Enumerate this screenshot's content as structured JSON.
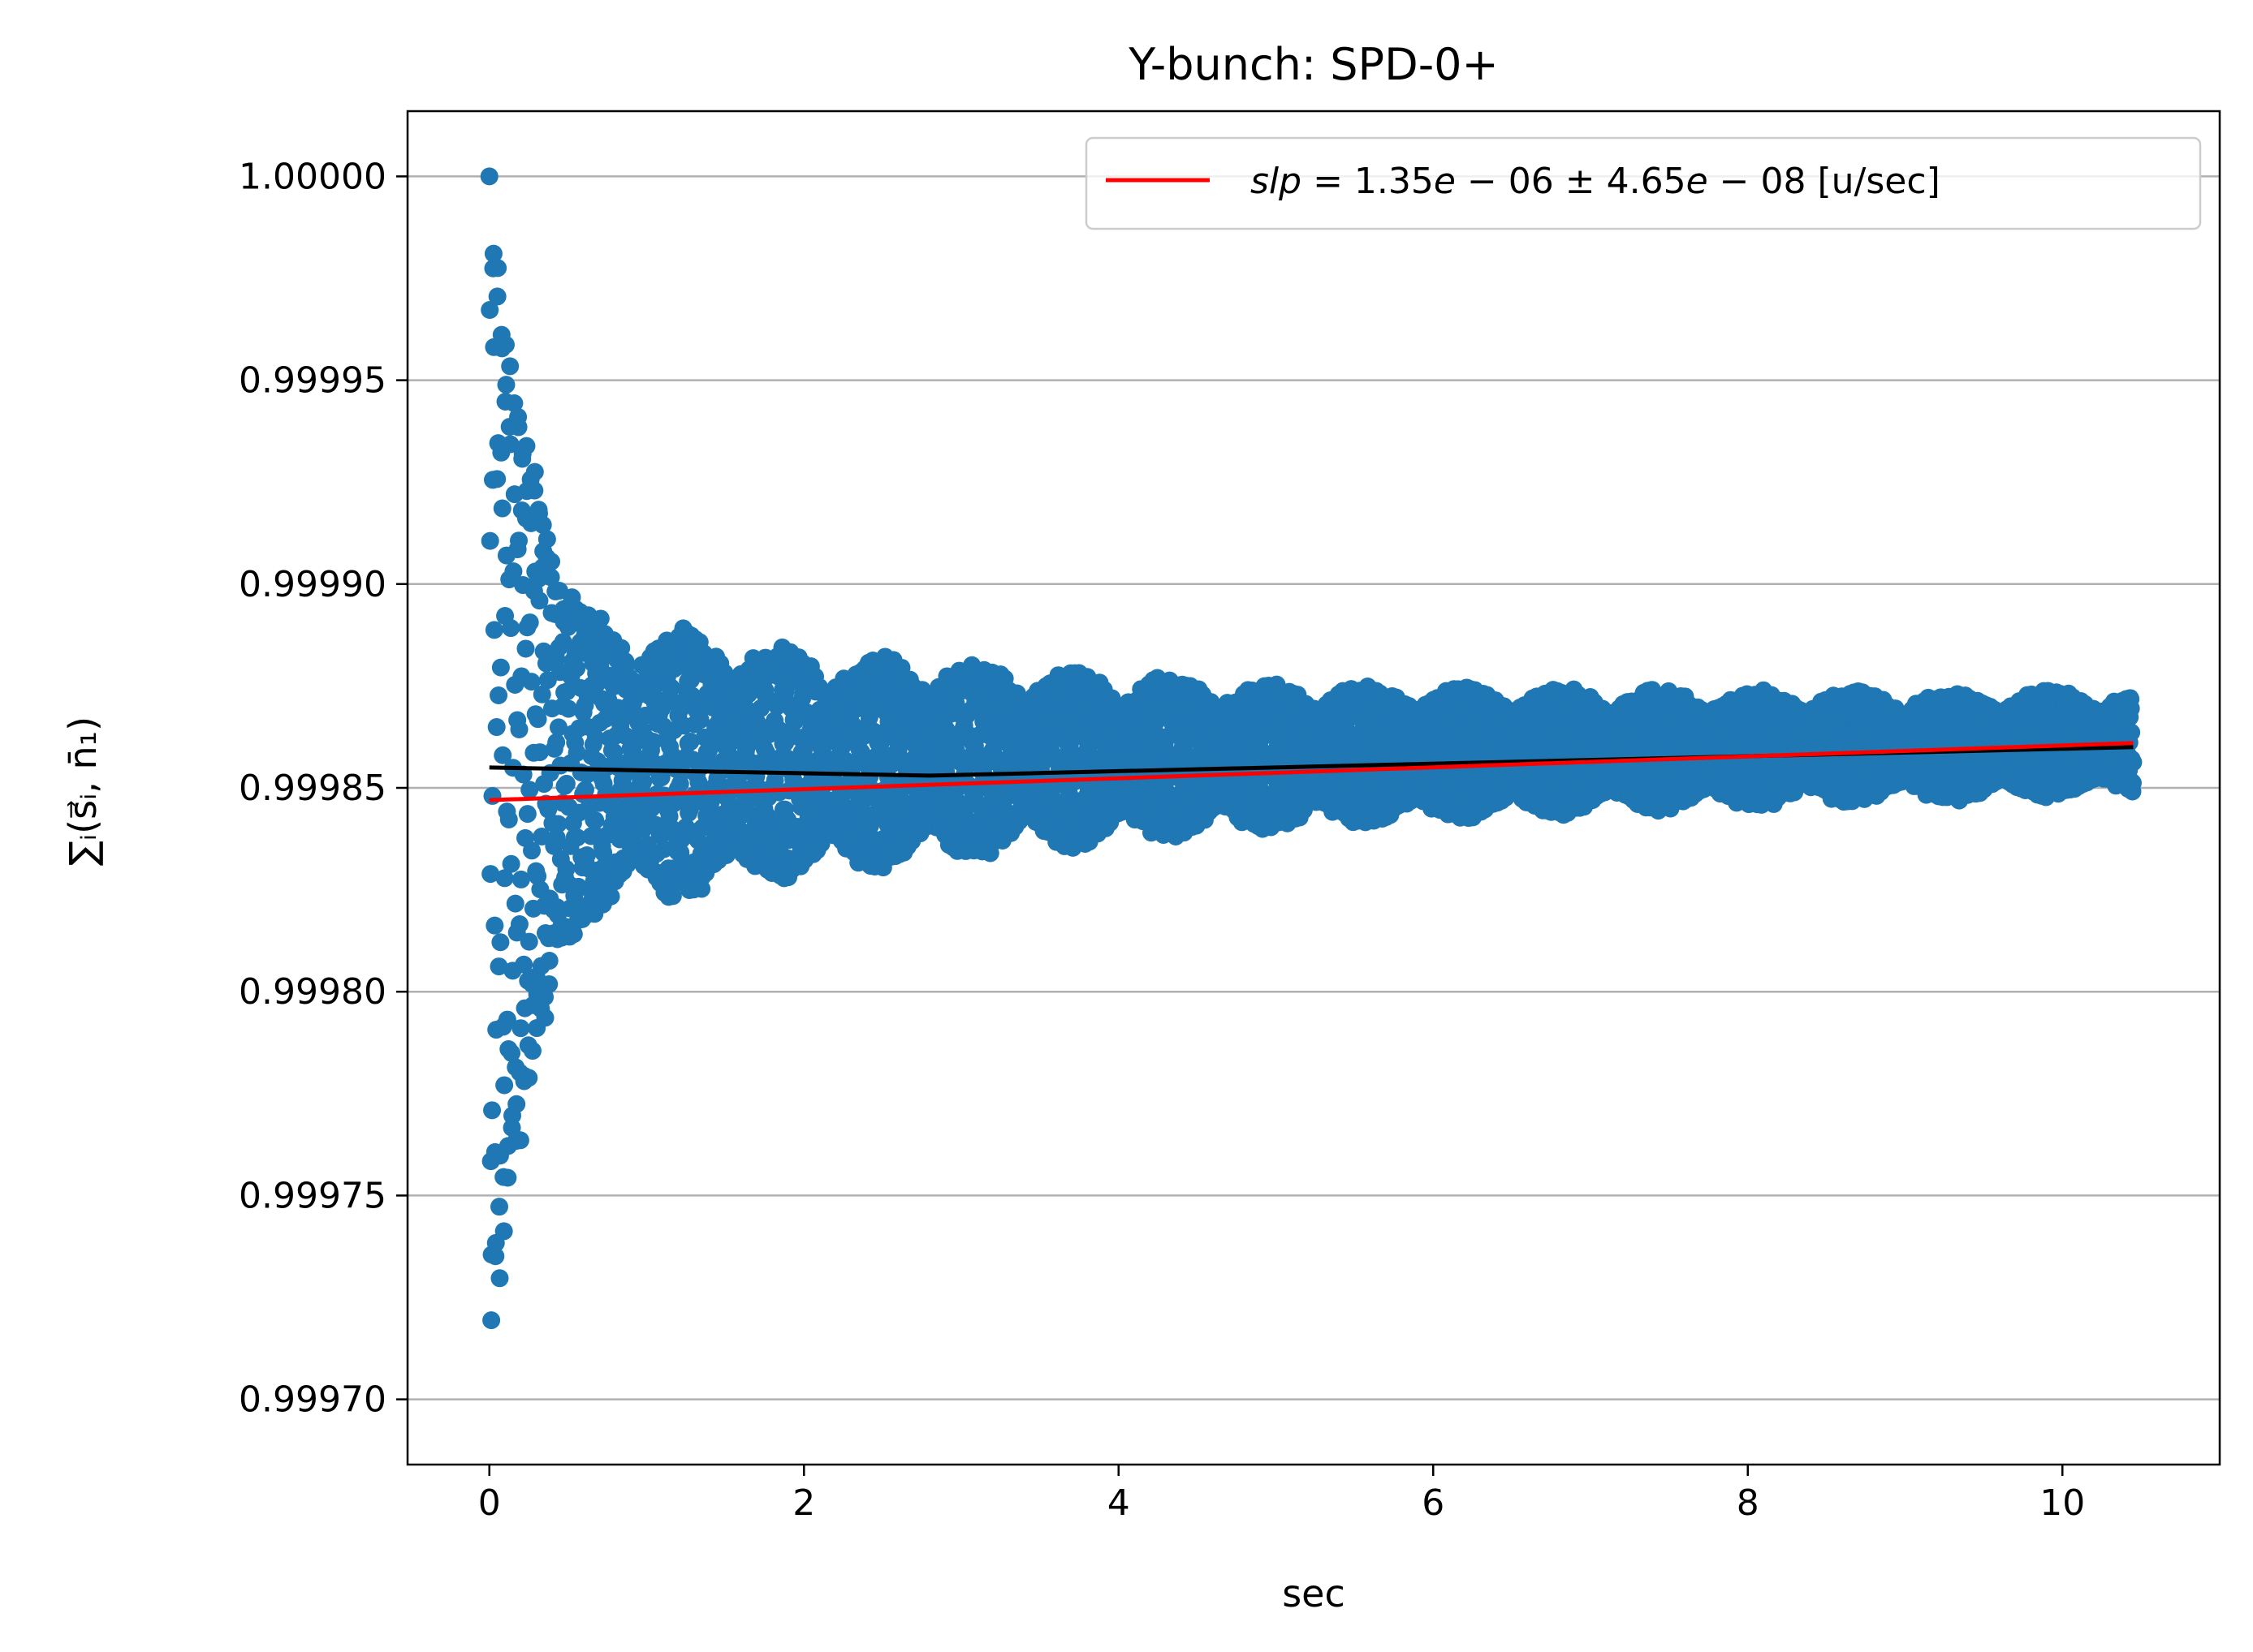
{
  "chart_data": {
    "type": "scatter",
    "title": "Y-bunch: SPD-0+",
    "xlabel": "sec",
    "ylabel": "∑ᵢ(s⃗ᵢ, n̄₁)",
    "xlim": [
      -0.52,
      11.0
    ],
    "ylim": [
      0.999684,
      1.000016
    ],
    "xticks": [
      0,
      2,
      4,
      6,
      8,
      10
    ],
    "xtick_labels": [
      "0",
      "2",
      "4",
      "6",
      "8",
      "10"
    ],
    "yticks": [
      0.9997,
      0.99975,
      0.9998,
      0.99985,
      0.9999,
      0.99995,
      1.0
    ],
    "ytick_labels": [
      "0.99970",
      "0.99975",
      "0.99980",
      "0.99985",
      "0.99990",
      "0.99995",
      "1.00000"
    ],
    "grid": "y-major",
    "legend": {
      "position": "top-right",
      "entries": [
        {
          "name": "slp = 1.35e − 06 ± 4.65e − 08 [u/sec]",
          "name_parts": {
            "lhs": "slp",
            "rest": " = 1.35",
            "e1": "e",
            "m1": " − 06 ± 4.65",
            "e2": "e",
            "m2": " − 08 [u/sec]"
          },
          "color": "#ff0000"
        }
      ]
    },
    "series": [
      {
        "kind": "scatter",
        "color": "#1f77b4",
        "description_points": "decaying oscillation around a drifting center",
        "x_range": [
          0.0,
          10.45
        ],
        "start_value": 1.0,
        "min_value": 0.9997,
        "center_start": 0.999855,
        "center_end": 0.999861,
        "envelope_start": 0.000151,
        "envelope_floor": 1.2e-05
      },
      {
        "kind": "line",
        "color": "#000000",
        "x": [
          0.0,
          2.8,
          10.45
        ],
        "y": [
          0.999855,
          0.999853,
          0.99986
        ]
      },
      {
        "kind": "line",
        "color": "#ff0000",
        "x": [
          0.0,
          10.45
        ],
        "y": [
          0.999847,
          0.999861
        ]
      }
    ]
  }
}
